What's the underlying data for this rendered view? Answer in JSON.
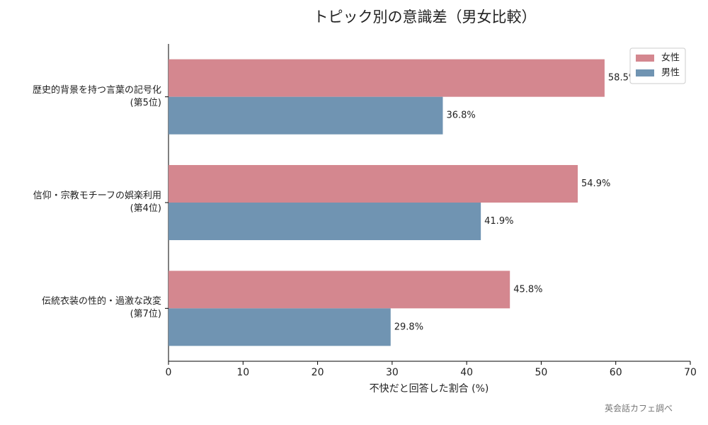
{
  "chart_data": {
    "type": "barh",
    "title": "トピック別の意識差（男女比較）",
    "x_label": "不快だと回答した割合 (%)",
    "source": "英会話カフェ調べ",
    "categories": [
      "歴史的背景を持つ言葉の記号化\n(第5位)",
      "信仰・宗教モチーフの娯楽利用\n(第4位)",
      "伝統衣装の性的・過激な改変\n(第7位)"
    ],
    "series": [
      {
        "name": "女性",
        "color": "#d4878f",
        "values": [
          58.5,
          54.9,
          45.8
        ],
        "value_labels": [
          "58.5%",
          "54.9%",
          "45.8%"
        ]
      },
      {
        "name": "男性",
        "color": "#7094b2",
        "values": [
          36.8,
          41.9,
          29.8
        ],
        "value_labels": [
          "36.8%",
          "41.9%",
          "29.8%"
        ]
      }
    ],
    "xlim": [
      0,
      70
    ],
    "xticks": [
      0,
      10,
      20,
      30,
      40,
      50,
      60,
      70
    ],
    "grid": false,
    "legend": "upper right"
  }
}
